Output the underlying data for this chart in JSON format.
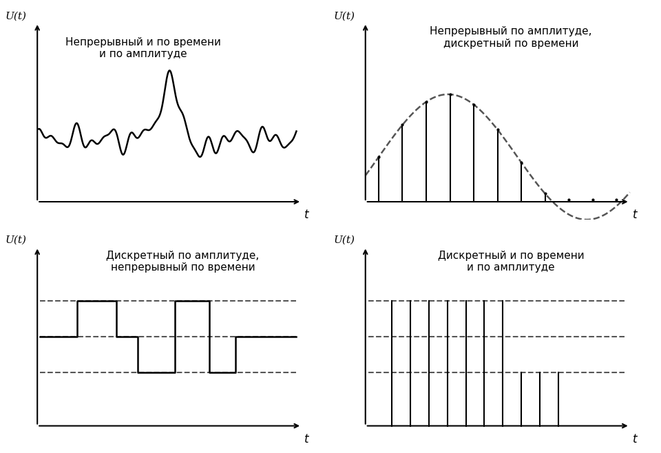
{
  "title1": "Непрерывный и по времени\nи по амплитуде",
  "title2": "Непрерывный по амплитуде,\nдискретный по времени",
  "title3": "Дискретный по амплитуде,\nнепрерывный по времени",
  "title4": "Дискретный и по времени\nи по амплитуде",
  "label_ut": "U(t)",
  "label_t": "t",
  "bg_color": "#ffffff",
  "line_color": "#000000",
  "dashed_color": "#555555"
}
